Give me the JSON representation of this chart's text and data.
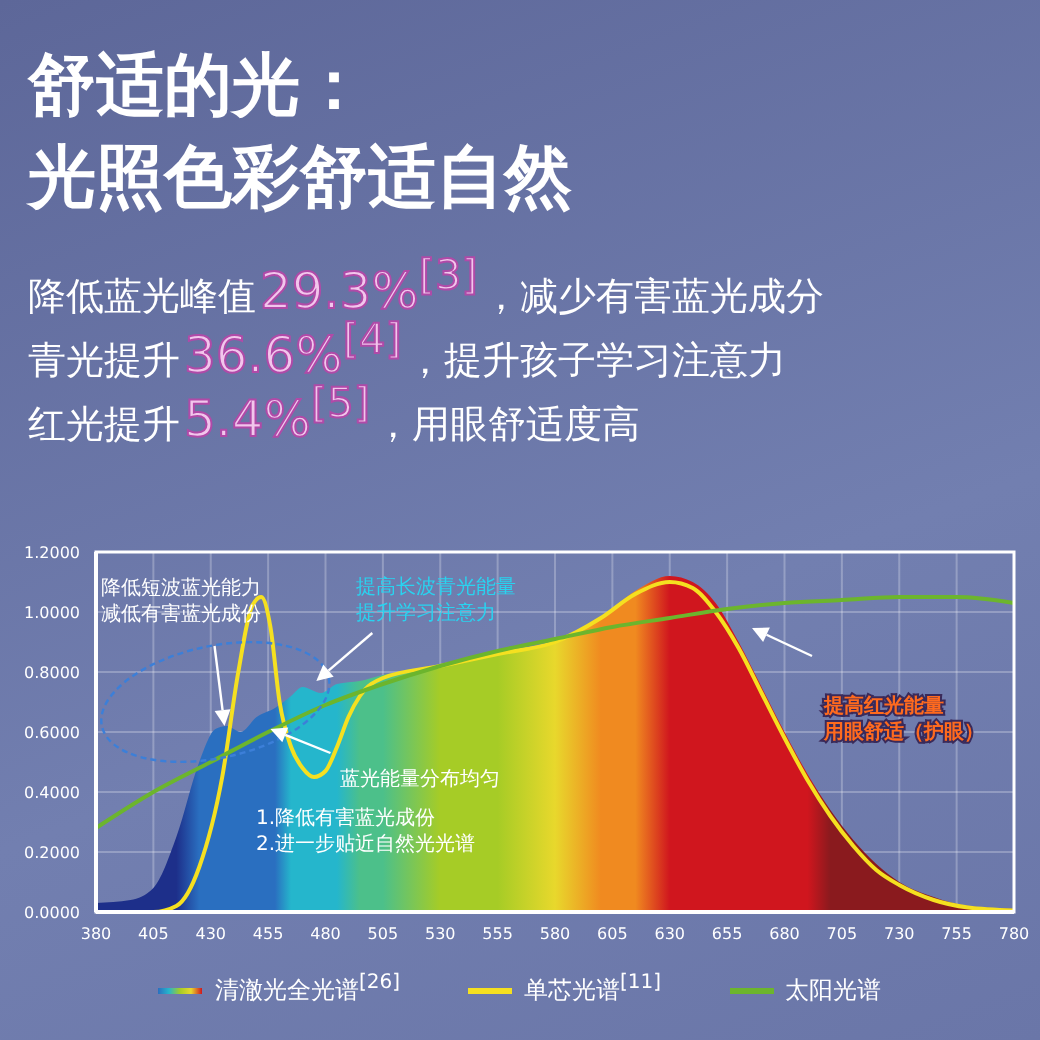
{
  "chart_data": {
    "type": "line",
    "title": "舒适的光：光照色彩舒适自然",
    "subtitle": "降低蓝光峰值29.3%$^{[3]}$，减少有害蓝光成分",
    "series": [
      {
        "name": "清澈光全光谱$^{[26]}$",
        "type": "area",
        "color": "#d0161e",
        "x": [
          380,
          395,
          405,
          415,
          425,
          432,
          437,
          443,
          450,
          458,
          465,
          470,
          478,
          485,
          495,
          505,
          530,
          555,
          580,
          600,
          615,
          630,
          640,
          650,
          660,
          670,
          680,
          690,
          700,
          710,
          720,
          730,
          745,
          760,
          780
        ],
        "values": [
          0.03,
          0.04,
          0.08,
          0.25,
          0.5,
          0.61,
          0.62,
          0.6,
          0.65,
          0.68,
          0.72,
          0.75,
          0.73,
          0.76,
          0.77,
          0.79,
          0.82,
          0.87,
          0.9,
          0.98,
          1.07,
          1.12,
          1.1,
          1.03,
          0.9,
          0.75,
          0.6,
          0.46,
          0.34,
          0.24,
          0.16,
          0.1,
          0.05,
          0.02,
          0.01
        ]
      },
      {
        "name": "单芯光谱$^{[11]}$",
        "color": "#f5e020",
        "x": [
          380,
          405,
          415,
          425,
          435,
          442,
          448,
          452,
          456,
          460,
          465,
          470,
          475,
          480,
          485,
          490,
          495,
          505,
          530,
          555,
          580,
          600,
          615,
          630,
          640,
          650,
          660,
          670,
          680,
          690,
          700,
          710,
          720,
          730,
          745,
          760,
          780
        ],
        "values": [
          0,
          0,
          0.02,
          0.15,
          0.45,
          0.8,
          1.02,
          1.05,
          0.95,
          0.7,
          0.55,
          0.48,
          0.45,
          0.47,
          0.55,
          0.65,
          0.72,
          0.78,
          0.82,
          0.86,
          0.9,
          0.98,
          1.06,
          1.1,
          1.08,
          1.0,
          0.88,
          0.73,
          0.58,
          0.44,
          0.32,
          0.22,
          0.14,
          0.09,
          0.04,
          0.015,
          0.005
        ]
      },
      {
        "name": "太阳光谱",
        "color": "#6cb52d",
        "x": [
          380,
          405,
          430,
          455,
          480,
          505,
          530,
          555,
          580,
          605,
          630,
          655,
          680,
          705,
          730,
          755,
          780
        ],
        "values": [
          0.28,
          0.4,
          0.5,
          0.6,
          0.69,
          0.76,
          0.82,
          0.87,
          0.91,
          0.95,
          0.98,
          1.01,
          1.03,
          1.04,
          1.05,
          1.05,
          1.03
        ]
      }
    ],
    "xlim": [
      380,
      780
    ],
    "xticks": [
      380,
      405,
      430,
      455,
      480,
      505,
      530,
      555,
      580,
      605,
      630,
      655,
      680,
      705,
      730,
      755,
      780
    ],
    "ylim": [
      0,
      1.2
    ],
    "yticks": [
      {
        "value": 0,
        "label": "0.0000"
      },
      {
        "value": 0.2,
        "label": "0.2000"
      },
      {
        "value": 0.4,
        "label": "0.4000"
      },
      {
        "value": 0.6,
        "label": "0.6000"
      },
      {
        "value": 0.8,
        "label": "0.8000"
      },
      {
        "value": 1.0,
        "label": "1.0000"
      },
      {
        "value": 1.2,
        "label": "1.2000"
      }
    ],
    "grid": true,
    "legend": "bottom",
    "annotations": [
      "青光提升36.6%$^{[4]}$，提升孩子学习注意力",
      "红光提升5.4%$^{[5]}$，用眼舒适度高",
      {
        "text": "降低短波蓝光能力减低有害蓝光成份",
        "x": 436,
        "y": 0.62
      },
      {
        "text": "提高长波青光能量提升学习注意力",
        "x": 476,
        "y": 0.77
      },
      {
        "text": "蓝光能量分布均匀",
        "x": 456,
        "y": 0.61
      },
      "1.降低有害蓝光成份",
      "2.进一步贴近自然光光谱",
      "提高红光能量用眼舒适（护眼）"
    ]
  }
}
